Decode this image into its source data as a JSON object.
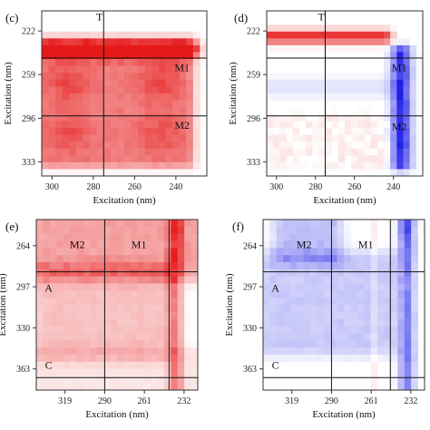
{
  "figure": {
    "panels": [
      {
        "id": "c",
        "label": "(c)",
        "kind": "red",
        "xlabel": "Excitation (nm)",
        "ylabel": "Excitation (nm)",
        "xticks": [
          "300",
          "280",
          "260",
          "240"
        ],
        "yticks": [
          "222",
          "259",
          "296",
          "333"
        ],
        "annotations": [
          "T",
          "M1",
          "M2"
        ]
      },
      {
        "id": "d",
        "label": "(d)",
        "kind": "redblue",
        "xlabel": "Excitation (nm)",
        "ylabel": "Excitation (nm)",
        "xticks": [
          "300",
          "280",
          "260",
          "240"
        ],
        "yticks": [
          "222",
          "259",
          "296",
          "333"
        ],
        "annotations": [
          "T",
          "M1",
          "M2"
        ]
      },
      {
        "id": "e",
        "label": "(e)",
        "kind": "red",
        "xlabel": "Excitation (nm)",
        "ylabel": "Excitation (nm)",
        "xticks": [
          "319",
          "290",
          "261",
          "232"
        ],
        "yticks": [
          "264",
          "297",
          "330",
          "363"
        ],
        "annotations": [
          "M2",
          "M1",
          "A",
          "C"
        ]
      },
      {
        "id": "f",
        "label": "(f)",
        "kind": "blue",
        "xlabel": "Excitation (nm)",
        "ylabel": "Excitation (nm)",
        "xticks": [
          "319",
          "290",
          "261",
          "232"
        ],
        "yticks": [
          "264",
          "297",
          "330",
          "363"
        ],
        "annotations": [
          "M2",
          "M1",
          "A",
          "C"
        ]
      }
    ]
  },
  "chart_data": [
    {
      "type": "heatmap",
      "panel": "(c)",
      "xlabel": "Excitation (nm)",
      "ylabel": "Excitation (nm)",
      "x_range": [
        305,
        225
      ],
      "y_range": [
        205,
        345
      ],
      "xticks": [
        300,
        280,
        260,
        240
      ],
      "yticks": [
        222,
        259,
        296,
        333
      ],
      "divider_lines": {
        "x": [
          275
        ],
        "y": [
          245,
          294
        ]
      },
      "annotations": [
        {
          "text": "T",
          "x": 277,
          "y": 210
        },
        {
          "text": "M1",
          "x": 237,
          "y": 253
        },
        {
          "text": "M2",
          "x": 237,
          "y": 302
        }
      ],
      "features": {
        "band": {
          "y": 238,
          "x_from": 305,
          "x_to": 232,
          "intensity": 0.9
        },
        "body": {
          "x_from": 303,
          "x_to": 235,
          "y_from": 232,
          "y_to": 333,
          "intensity": 0.62
        },
        "hotspots": [
          {
            "x": 292,
            "y": 265,
            "intensity": 0.25
          },
          {
            "x": 247,
            "y": 265,
            "intensity": 0.25
          },
          {
            "x": 292,
            "y": 310,
            "intensity": 0.2
          },
          {
            "x": 247,
            "y": 310,
            "intensity": 0.2
          }
        ]
      },
      "colors": {
        "positive": "#e60000",
        "background": "#ffffff"
      }
    },
    {
      "type": "heatmap",
      "panel": "(d)",
      "xlabel": "Excitation (nm)",
      "ylabel": "Excitation (nm)",
      "x_range": [
        305,
        225
      ],
      "y_range": [
        205,
        345
      ],
      "xticks": [
        300,
        280,
        260,
        240
      ],
      "yticks": [
        222,
        259,
        296,
        333
      ],
      "divider_lines": {
        "x": [
          275
        ],
        "y": [
          245,
          294
        ]
      },
      "annotations": [
        {
          "text": "T",
          "x": 277,
          "y": 210
        },
        {
          "text": "M1",
          "x": 237,
          "y": 253
        },
        {
          "text": "M2",
          "x": 237,
          "y": 303
        }
      ],
      "features": {
        "band": {
          "y": 227,
          "x_from": 305,
          "x_to": 245,
          "intensity": 0.95
        },
        "blue_column": {
          "x": 236,
          "y_from": 240,
          "y_to": 335,
          "intensity": 0.95
        },
        "faint_blue_row": {
          "y": 270,
          "x_from": 305,
          "x_to": 240,
          "intensity": 0.12
        },
        "faint_red_area": {
          "x_from": 303,
          "x_to": 245,
          "y_from": 295,
          "y_to": 335,
          "intensity": 0.12
        }
      },
      "colors": {
        "positive": "#e60000",
        "negative": "#0000e6",
        "background": "#ffffff"
      }
    },
    {
      "type": "heatmap",
      "panel": "(e)",
      "xlabel": "Excitation (nm)",
      "ylabel": "Excitation (nm)",
      "x_range": [
        340,
        222
      ],
      "y_range": [
        243,
        380
      ],
      "xticks": [
        319,
        290,
        261,
        232
      ],
      "yticks": [
        264,
        297,
        330,
        363
      ],
      "divider_lines": {
        "x": [
          290,
          243
        ],
        "y": [
          285,
          370
        ]
      },
      "annotations": [
        {
          "text": "M2",
          "x": 310,
          "y": 263
        },
        {
          "text": "M1",
          "x": 265,
          "y": 263
        },
        {
          "text": "A",
          "x": 331,
          "y": 298
        },
        {
          "text": "C",
          "x": 331,
          "y": 360
        }
      ],
      "features": {
        "column": {
          "x": 238,
          "y_from": 243,
          "y_to": 380,
          "intensity": 0.75
        },
        "top_rows": {
          "y_from": 243,
          "y_to": 285,
          "intensity": 0.45
        },
        "body": {
          "x_from": 335,
          "x_to": 245,
          "y_from": 285,
          "y_to": 350,
          "intensity": 0.3
        },
        "low_area": {
          "y_from": 350,
          "y_to": 380,
          "intensity": 0.12
        }
      },
      "colors": {
        "positive": "#e60000",
        "background": "#ffffff"
      }
    },
    {
      "type": "heatmap",
      "panel": "(f)",
      "xlabel": "Excitation (nm)",
      "ylabel": "Excitation (nm)",
      "x_range": [
        340,
        222
      ],
      "y_range": [
        243,
        380
      ],
      "xticks": [
        319,
        290,
        261,
        232
      ],
      "yticks": [
        264,
        297,
        330,
        363
      ],
      "divider_lines": {
        "x": [
          290,
          247
        ],
        "y": [
          285,
          370
        ]
      },
      "annotations": [
        {
          "text": "M2",
          "x": 310,
          "y": 263
        },
        {
          "text": "M1",
          "x": 265,
          "y": 263
        },
        {
          "text": "A",
          "x": 331,
          "y": 298
        },
        {
          "text": "C",
          "x": 331,
          "y": 360
        }
      ],
      "features": {
        "column": {
          "x": 235,
          "y_from": 243,
          "y_to": 380,
          "intensity": 0.85
        },
        "top_band": {
          "y_from": 243,
          "y_to": 275,
          "x_from": 325,
          "x_to": 290,
          "intensity": 0.3
        },
        "body": {
          "x_from": 335,
          "x_to": 248,
          "y_from": 275,
          "y_to": 345,
          "intensity": 0.25
        },
        "faint_red_column": {
          "x": 258,
          "intensity": 0.1
        }
      },
      "colors": {
        "negative": "#0000e6",
        "background": "#ffffff"
      }
    }
  ]
}
